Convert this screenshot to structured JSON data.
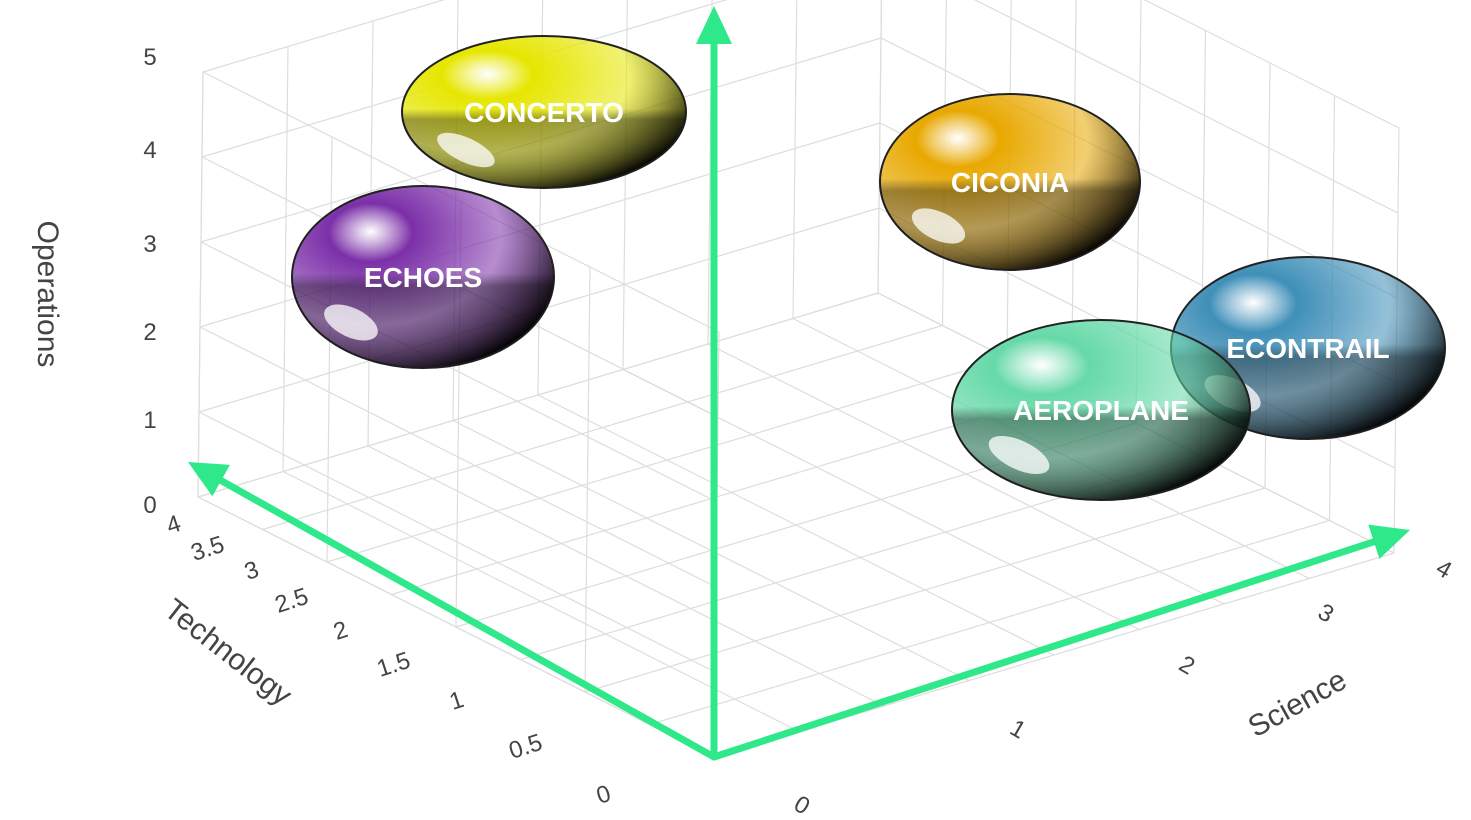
{
  "chart_data": {
    "type": "scatter",
    "subtype": "3d-bubble",
    "title": "",
    "axes": {
      "x": {
        "label": "Science",
        "ticks": [
          "0",
          "1",
          "2",
          "3",
          "4"
        ],
        "range": [
          0,
          4
        ]
      },
      "y": {
        "label": "Technology",
        "ticks": [
          "0",
          "0.5",
          "1",
          "1.5",
          "2",
          "2.5",
          "3",
          "3.5",
          "4"
        ],
        "range": [
          0,
          4
        ]
      },
      "z": {
        "label": "Operations",
        "ticks": [
          "0",
          "1",
          "2",
          "3",
          "4",
          "5"
        ],
        "range": [
          0,
          5
        ]
      }
    },
    "grid": true,
    "points": [
      {
        "label": "CONCERTO",
        "science": 0,
        "technology": 3.5,
        "operations": 4,
        "color": "#e6e600"
      },
      {
        "label": "ECHOES",
        "science": 0,
        "technology": 3.8,
        "operations": 2.5,
        "color": "#7b2fa8"
      },
      {
        "label": "CICONIA",
        "science": 2.5,
        "technology": 2,
        "operations": 4,
        "color": "#e8a800"
      },
      {
        "label": "ECONTRAIL",
        "science": 4,
        "technology": 0.5,
        "operations": 2,
        "color": "#3f8fb8"
      },
      {
        "label": "AEROPLANE",
        "science": 3.5,
        "technology": 0.5,
        "operations": 1.5,
        "color": "#66d9a8"
      }
    ]
  },
  "colors": {
    "arrow": "#2ee88a",
    "grid": "#dddddd",
    "text": "#444444"
  }
}
